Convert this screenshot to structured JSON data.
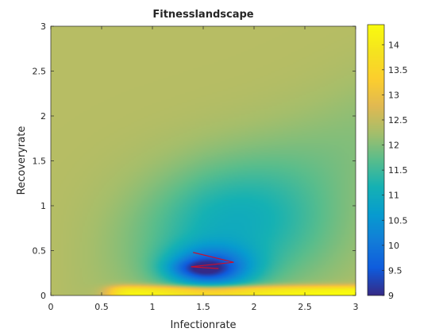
{
  "chart_data": {
    "type": "heatmap",
    "title": "Fitnesslandscape",
    "xlabel": "Infectionrate",
    "ylabel": "Recoveryrate",
    "xlim": [
      0,
      3
    ],
    "ylim": [
      0,
      3
    ],
    "xticks": [
      0,
      0.5,
      1,
      1.5,
      2,
      2.5,
      3
    ],
    "xtick_labels": [
      "0",
      "0.5",
      "1",
      "1.5",
      "2",
      "2.5",
      "3"
    ],
    "yticks": [
      0,
      0.5,
      1,
      1.5,
      2,
      2.5,
      3
    ],
    "ytick_labels": [
      "0",
      "0.5",
      "1",
      "1.5",
      "2",
      "2.5",
      "3"
    ],
    "colormap": "parula",
    "clim": [
      9,
      14.4
    ],
    "colorbar_ticks": [
      9,
      9.5,
      10,
      10.5,
      11,
      11.5,
      12,
      12.5,
      13,
      13.5,
      14
    ],
    "colorbar_tick_labels": [
      "9",
      "9.5",
      "10",
      "10.5",
      "11",
      "11.5",
      "12",
      "12.5",
      "13",
      "13.5",
      "14"
    ],
    "field_features": {
      "background_value": 12.4,
      "minimum": {
        "x": 1.57,
        "y": 0.3,
        "value": 9.2
      },
      "high_band": {
        "y_range": [
          0.0,
          0.12
        ],
        "x_range": [
          0.55,
          3
        ],
        "value": 14.2
      }
    },
    "path": {
      "color": "#c8102e",
      "x": [
        1.4,
        1.8,
        1.38,
        1.65
      ],
      "y": [
        0.48,
        0.37,
        0.32,
        0.3
      ]
    }
  }
}
